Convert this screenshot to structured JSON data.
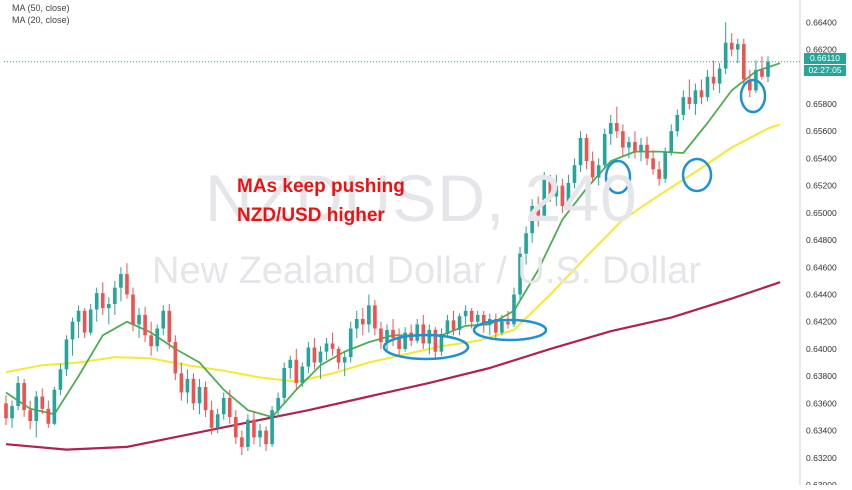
{
  "legend": {
    "ma50": "MA (50, close)",
    "ma20": "MA (20, close)"
  },
  "watermark": {
    "symbol": "NZDUSD, 240",
    "name": "New Zealand Dollar / U.S. Dollar"
  },
  "annotation": {
    "line1": "MAs keep pushing",
    "line2": "NZD/USD higher"
  },
  "price_tag": {
    "price": "0.66110",
    "countdown": "02:27:05"
  },
  "colors": {
    "up": "#26a69a",
    "down": "#ef5350",
    "ma_green": "#4caf50",
    "ma_yellow": "#f5e932",
    "ma_red": "#b0224f",
    "circle": "#1e90d6",
    "annotation": "#ee1111"
  },
  "chart_data": {
    "type": "candlestick",
    "y_axis_ticks": [
      "0.66400",
      "0.66200",
      "0.65800",
      "0.65600",
      "0.65400",
      "0.65200",
      "0.65000",
      "0.64800",
      "0.64600",
      "0.64400",
      "0.64200",
      "0.64000",
      "0.63800",
      "0.63600",
      "0.63400",
      "0.63200",
      "0.63000"
    ],
    "ylim": [
      0.63,
      0.6652
    ],
    "price_line": 0.6611,
    "candles": [
      [
        0.636,
        0.6366,
        0.6344,
        0.6349
      ],
      [
        0.6349,
        0.6362,
        0.6342,
        0.6358
      ],
      [
        0.6358,
        0.638,
        0.6355,
        0.6375
      ],
      [
        0.6375,
        0.6378,
        0.635,
        0.6355
      ],
      [
        0.6355,
        0.6362,
        0.6341,
        0.6347
      ],
      [
        0.6347,
        0.6369,
        0.6335,
        0.6365
      ],
      [
        0.6365,
        0.6371,
        0.6352,
        0.6356
      ],
      [
        0.6356,
        0.6362,
        0.6342,
        0.6345
      ],
      [
        0.6345,
        0.6372,
        0.6344,
        0.637
      ],
      [
        0.637,
        0.6389,
        0.6366,
        0.6385
      ],
      [
        0.6385,
        0.641,
        0.638,
        0.6407
      ],
      [
        0.6407,
        0.6423,
        0.6395,
        0.642
      ],
      [
        0.642,
        0.6432,
        0.6408,
        0.6428
      ],
      [
        0.6428,
        0.643,
        0.6408,
        0.6412
      ],
      [
        0.6412,
        0.6433,
        0.641,
        0.6429
      ],
      [
        0.6429,
        0.6445,
        0.642,
        0.6441
      ],
      [
        0.6441,
        0.6449,
        0.6425,
        0.643
      ],
      [
        0.643,
        0.6438,
        0.6418,
        0.6433
      ],
      [
        0.6433,
        0.645,
        0.6425,
        0.6445
      ],
      [
        0.6445,
        0.646,
        0.6435,
        0.6455
      ],
      [
        0.6455,
        0.6463,
        0.6437,
        0.644
      ],
      [
        0.644,
        0.6445,
        0.6413,
        0.6418
      ],
      [
        0.6418,
        0.643,
        0.6408,
        0.6425
      ],
      [
        0.6425,
        0.6431,
        0.6405,
        0.641
      ],
      [
        0.641,
        0.642,
        0.6395,
        0.6402
      ],
      [
        0.6402,
        0.6418,
        0.6398,
        0.6415
      ],
      [
        0.6415,
        0.6432,
        0.641,
        0.6428
      ],
      [
        0.6428,
        0.6433,
        0.64,
        0.6405
      ],
      [
        0.6405,
        0.641,
        0.6377,
        0.6382
      ],
      [
        0.6382,
        0.639,
        0.6362,
        0.6368
      ],
      [
        0.6368,
        0.6385,
        0.636,
        0.6378
      ],
      [
        0.6378,
        0.6382,
        0.6355,
        0.636
      ],
      [
        0.636,
        0.6378,
        0.6352,
        0.6372
      ],
      [
        0.6372,
        0.6376,
        0.635,
        0.6355
      ],
      [
        0.6355,
        0.6362,
        0.6337,
        0.6342
      ],
      [
        0.6342,
        0.6356,
        0.6338,
        0.6352
      ],
      [
        0.6352,
        0.6368,
        0.6348,
        0.6364
      ],
      [
        0.6364,
        0.637,
        0.6345,
        0.635
      ],
      [
        0.635,
        0.6355,
        0.633,
        0.6335
      ],
      [
        0.6335,
        0.634,
        0.6322,
        0.6328
      ],
      [
        0.6328,
        0.6352,
        0.6325,
        0.6348
      ],
      [
        0.6348,
        0.6354,
        0.633,
        0.6335
      ],
      [
        0.6335,
        0.6345,
        0.6328,
        0.634
      ],
      [
        0.634,
        0.6343,
        0.6325,
        0.633
      ],
      [
        0.633,
        0.6358,
        0.6328,
        0.6355
      ],
      [
        0.6355,
        0.6368,
        0.635,
        0.6364
      ],
      [
        0.6364,
        0.639,
        0.636,
        0.6386
      ],
      [
        0.6386,
        0.6395,
        0.6378,
        0.6392
      ],
      [
        0.6392,
        0.64,
        0.637,
        0.6375
      ],
      [
        0.6375,
        0.639,
        0.6372,
        0.6387
      ],
      [
        0.6387,
        0.6405,
        0.6382,
        0.6401
      ],
      [
        0.6401,
        0.6408,
        0.6385,
        0.639
      ],
      [
        0.639,
        0.6402,
        0.6378,
        0.6398
      ],
      [
        0.6398,
        0.6408,
        0.6392,
        0.6404
      ],
      [
        0.6404,
        0.6412,
        0.6395,
        0.64
      ],
      [
        0.64,
        0.6402,
        0.6385,
        0.639
      ],
      [
        0.639,
        0.6398,
        0.638,
        0.6394
      ],
      [
        0.6394,
        0.642,
        0.639,
        0.6415
      ],
      [
        0.6415,
        0.6428,
        0.6408,
        0.6422
      ],
      [
        0.6422,
        0.643,
        0.641,
        0.6418
      ],
      [
        0.6418,
        0.644,
        0.6412,
        0.6432
      ],
      [
        0.6432,
        0.6436,
        0.641,
        0.6415
      ],
      [
        0.6415,
        0.642,
        0.64,
        0.6405
      ],
      [
        0.6405,
        0.6418,
        0.6398,
        0.6414
      ],
      [
        0.6414,
        0.6422,
        0.6402,
        0.6408
      ],
      [
        0.6408,
        0.6415,
        0.6395,
        0.64
      ],
      [
        0.64,
        0.6416,
        0.6398,
        0.6412
      ],
      [
        0.6412,
        0.6418,
        0.6402,
        0.6406
      ],
      [
        0.6406,
        0.6422,
        0.6404,
        0.6418
      ],
      [
        0.6418,
        0.6425,
        0.64,
        0.6404
      ],
      [
        0.6404,
        0.6418,
        0.6396,
        0.6414
      ],
      [
        0.6414,
        0.6416,
        0.6393,
        0.6398
      ],
      [
        0.6398,
        0.6415,
        0.6395,
        0.6411
      ],
      [
        0.6411,
        0.6425,
        0.6408,
        0.6421
      ],
      [
        0.6421,
        0.6428,
        0.641,
        0.6414
      ],
      [
        0.6414,
        0.6426,
        0.641,
        0.6424
      ],
      [
        0.6424,
        0.6432,
        0.6418,
        0.6428
      ],
      [
        0.6428,
        0.643,
        0.6415,
        0.642
      ],
      [
        0.642,
        0.6428,
        0.6416,
        0.6425
      ],
      [
        0.6425,
        0.6428,
        0.6412,
        0.6418
      ],
      [
        0.6418,
        0.6426,
        0.641,
        0.6422
      ],
      [
        0.6422,
        0.6426,
        0.6408,
        0.6412
      ],
      [
        0.6412,
        0.6425,
        0.641,
        0.642
      ],
      [
        0.642,
        0.6428,
        0.6415,
        0.6418
      ],
      [
        0.6418,
        0.6445,
        0.6416,
        0.644
      ],
      [
        0.644,
        0.6475,
        0.6436,
        0.647
      ],
      [
        0.647,
        0.649,
        0.6462,
        0.6485
      ],
      [
        0.6485,
        0.651,
        0.6478,
        0.6505
      ],
      [
        0.6505,
        0.6512,
        0.649,
        0.6498
      ],
      [
        0.6498,
        0.653,
        0.6494,
        0.6525
      ],
      [
        0.6525,
        0.6528,
        0.6508,
        0.6512
      ],
      [
        0.6512,
        0.6528,
        0.6505,
        0.652
      ],
      [
        0.652,
        0.6525,
        0.65,
        0.6505
      ],
      [
        0.6505,
        0.6528,
        0.6502,
        0.6522
      ],
      [
        0.6522,
        0.654,
        0.6518,
        0.6535
      ],
      [
        0.6535,
        0.656,
        0.653,
        0.6555
      ],
      [
        0.6555,
        0.6558,
        0.6532,
        0.6538
      ],
      [
        0.6538,
        0.6545,
        0.6522,
        0.6526
      ],
      [
        0.6526,
        0.654,
        0.652,
        0.6535
      ],
      [
        0.6535,
        0.6562,
        0.6532,
        0.6558
      ],
      [
        0.6558,
        0.6572,
        0.655,
        0.6566
      ],
      [
        0.6566,
        0.6578,
        0.6555,
        0.656
      ],
      [
        0.656,
        0.6565,
        0.6542,
        0.6548
      ],
      [
        0.6548,
        0.6556,
        0.654,
        0.6552
      ],
      [
        0.6552,
        0.656,
        0.654,
        0.6545
      ],
      [
        0.6545,
        0.6555,
        0.6538,
        0.655
      ],
      [
        0.655,
        0.6556,
        0.6535,
        0.654
      ],
      [
        0.654,
        0.6546,
        0.6528,
        0.6532
      ],
      [
        0.6532,
        0.6538,
        0.652,
        0.6525
      ],
      [
        0.6525,
        0.6548,
        0.6522,
        0.6545
      ],
      [
        0.6545,
        0.6565,
        0.6542,
        0.656
      ],
      [
        0.656,
        0.6576,
        0.6556,
        0.6572
      ],
      [
        0.6572,
        0.659,
        0.6568,
        0.6585
      ],
      [
        0.6585,
        0.6598,
        0.6576,
        0.658
      ],
      [
        0.658,
        0.6595,
        0.6572,
        0.659
      ],
      [
        0.659,
        0.6598,
        0.658,
        0.6585
      ],
      [
        0.6585,
        0.6605,
        0.6582,
        0.66
      ],
      [
        0.66,
        0.6612,
        0.659,
        0.6595
      ],
      [
        0.6595,
        0.661,
        0.6588,
        0.6606
      ],
      [
        0.6606,
        0.664,
        0.6602,
        0.6625
      ],
      [
        0.6625,
        0.6632,
        0.6615,
        0.662
      ],
      [
        0.662,
        0.6628,
        0.661,
        0.6624
      ],
      [
        0.6624,
        0.6628,
        0.6592,
        0.6598
      ],
      [
        0.6598,
        0.6605,
        0.6585,
        0.659
      ],
      [
        0.659,
        0.6612,
        0.6588,
        0.6605
      ],
      [
        0.6605,
        0.6615,
        0.6598,
        0.66
      ],
      [
        0.66,
        0.6615,
        0.6596,
        0.6611
      ]
    ],
    "ma20_points": [
      [
        0,
        0.6368
      ],
      [
        4,
        0.6356
      ],
      [
        8,
        0.6352
      ],
      [
        12,
        0.638
      ],
      [
        16,
        0.641
      ],
      [
        20,
        0.642
      ],
      [
        24,
        0.6412
      ],
      [
        28,
        0.64
      ],
      [
        32,
        0.639
      ],
      [
        36,
        0.637
      ],
      [
        40,
        0.6355
      ],
      [
        44,
        0.635
      ],
      [
        48,
        0.637
      ],
      [
        52,
        0.6388
      ],
      [
        56,
        0.6398
      ],
      [
        60,
        0.6405
      ],
      [
        64,
        0.641
      ],
      [
        68,
        0.641
      ],
      [
        72,
        0.641
      ],
      [
        76,
        0.6417
      ],
      [
        80,
        0.6418
      ],
      [
        84,
        0.6428
      ],
      [
        88,
        0.6458
      ],
      [
        92,
        0.6495
      ],
      [
        96,
        0.6518
      ],
      [
        100,
        0.6538
      ],
      [
        104,
        0.6545
      ],
      [
        108,
        0.6545
      ],
      [
        112,
        0.6544
      ],
      [
        116,
        0.6566
      ],
      [
        120,
        0.659
      ],
      [
        124,
        0.6604
      ],
      [
        128,
        0.661
      ]
    ],
    "ma50_points": [
      [
        0,
        0.6383
      ],
      [
        6,
        0.6388
      ],
      [
        12,
        0.639
      ],
      [
        18,
        0.6394
      ],
      [
        24,
        0.6393
      ],
      [
        30,
        0.6388
      ],
      [
        36,
        0.6384
      ],
      [
        42,
        0.6379
      ],
      [
        48,
        0.6376
      ],
      [
        54,
        0.6382
      ],
      [
        60,
        0.639
      ],
      [
        66,
        0.6396
      ],
      [
        72,
        0.6402
      ],
      [
        78,
        0.6406
      ],
      [
        84,
        0.6414
      ],
      [
        90,
        0.644
      ],
      [
        96,
        0.6468
      ],
      [
        102,
        0.6495
      ],
      [
        108,
        0.6513
      ],
      [
        114,
        0.653
      ],
      [
        120,
        0.6548
      ],
      [
        126,
        0.6562
      ],
      [
        128,
        0.6565
      ]
    ],
    "ma_red_points": [
      [
        0,
        0.633
      ],
      [
        10,
        0.6326
      ],
      [
        20,
        0.6328
      ],
      [
        30,
        0.6337
      ],
      [
        40,
        0.6346
      ],
      [
        50,
        0.6355
      ],
      [
        60,
        0.6365
      ],
      [
        70,
        0.6375
      ],
      [
        80,
        0.6386
      ],
      [
        90,
        0.64
      ],
      [
        100,
        0.6413
      ],
      [
        110,
        0.6423
      ],
      [
        120,
        0.6437
      ],
      [
        128,
        0.6449
      ]
    ]
  }
}
